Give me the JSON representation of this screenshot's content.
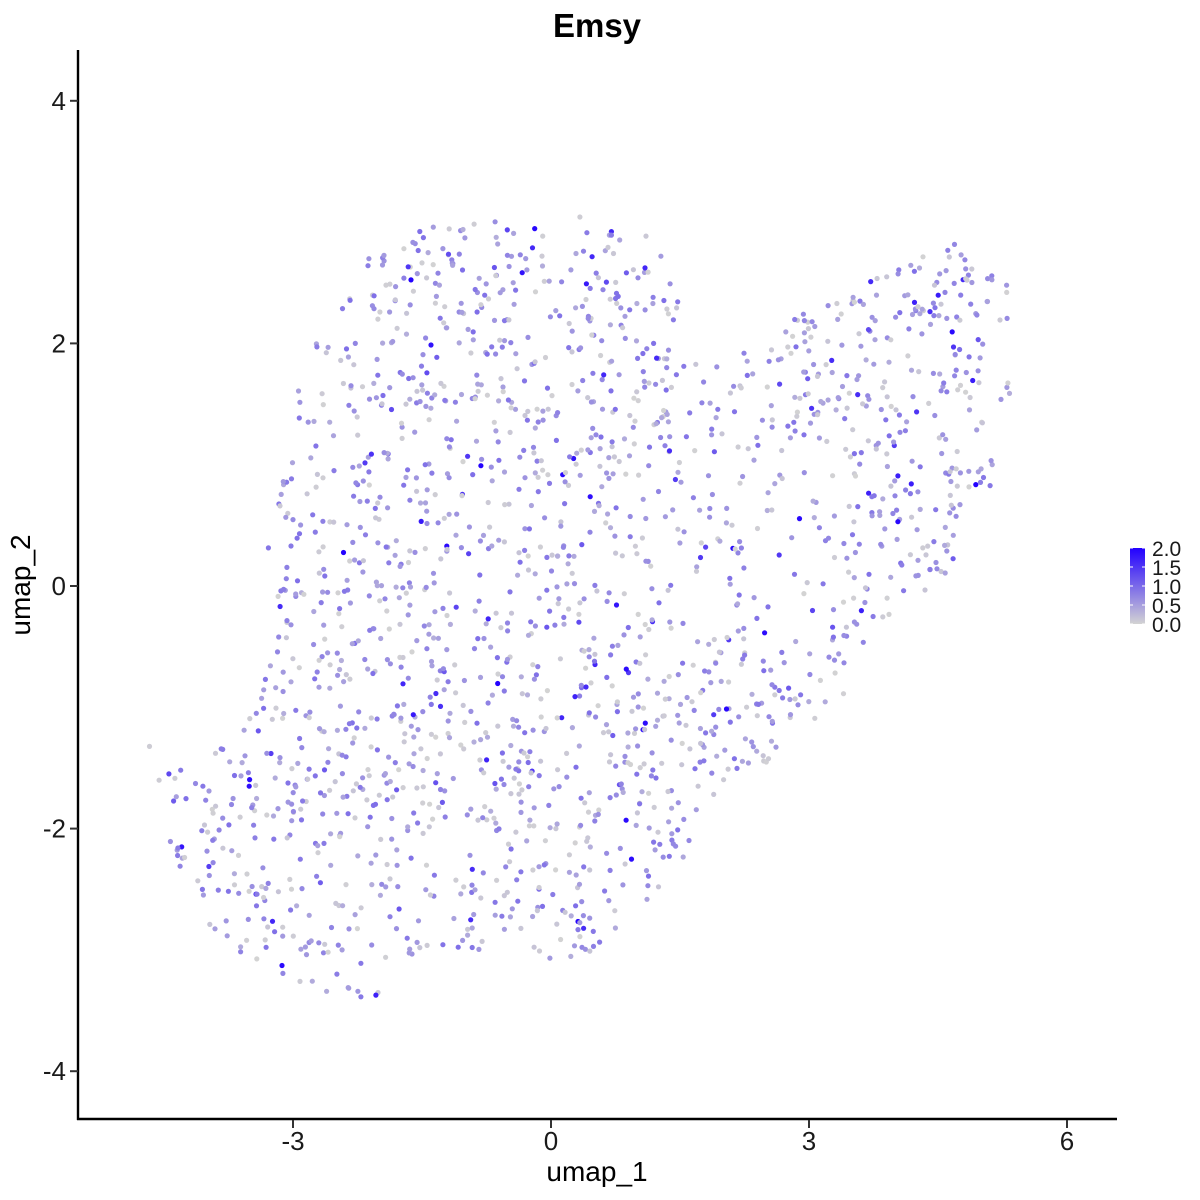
{
  "chart_data": {
    "type": "scatter",
    "title": "Emsy",
    "xlabel": "umap_1",
    "ylabel": "umap_2",
    "xlim": [
      -5.8,
      6.6
    ],
    "ylim": [
      -4.3,
      4.4
    ],
    "x_ticks": [
      -3,
      0,
      3,
      6
    ],
    "y_ticks": [
      -4,
      -2,
      0,
      2,
      4
    ],
    "x_tick_labels": [
      "-3",
      "0",
      "3",
      "6"
    ],
    "y_tick_labels": [
      "-4",
      "-2",
      "0",
      "2",
      "4"
    ],
    "grid": false,
    "legend": {
      "placement": "right",
      "type": "colorbar",
      "low_color": "#d3d3d3",
      "high_color": "#2200ff",
      "min": 0,
      "max": 2.0,
      "labels": [
        "2.0",
        "1.5",
        "1.0",
        "0.5",
        "0.0"
      ],
      "breaks": [
        2.0,
        1.5,
        1.0,
        0.5,
        0.0
      ]
    },
    "point_count": 2000,
    "point_distribution_note": "cells form a broad band from lower-left (about x=-4.5, y=-3) to upper-right (about x=5.3, y=2.5); expression mostly 0.3-1.0"
  }
}
